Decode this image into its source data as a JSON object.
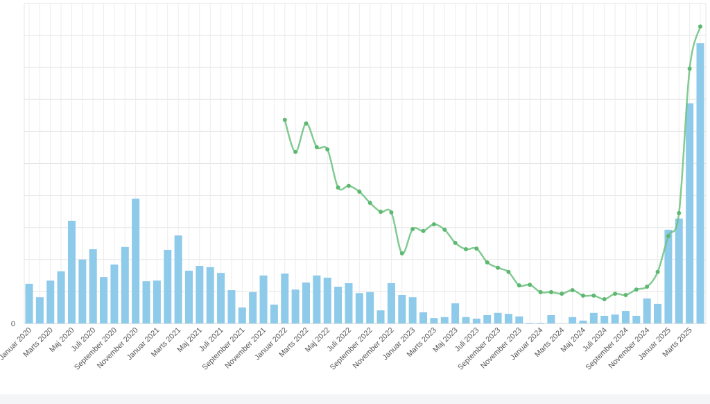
{
  "chart_data": {
    "type": "bar+line",
    "categories": [
      "Januar 2020",
      null,
      "Marts 2020",
      null,
      "Maj 2020",
      null,
      "Juli 2020",
      null,
      "September 2020",
      null,
      "November 2020",
      null,
      "Januar 2021",
      null,
      "Marts 2021",
      null,
      "Maj 2021",
      null,
      "Juli 2021",
      null,
      "September 2021",
      null,
      "November 2021",
      null,
      "Januar 2022",
      null,
      "Marts 2022",
      null,
      "Maj 2022",
      null,
      "Juli 2022",
      null,
      "September 2022",
      null,
      "November 2022",
      null,
      "Januar 2023",
      null,
      "Marts 2023",
      null,
      "Maj 2023",
      null,
      "Juli 2023",
      null,
      "September 2023",
      null,
      "November 2023",
      null,
      "Januar 2024",
      null,
      "Marts 2024",
      null,
      "Maj 2024",
      null,
      "Juli 2024",
      null,
      "September 2024",
      null,
      "November 2024",
      null,
      "Januar 2025",
      null,
      "Marts 2025",
      null
    ],
    "series": [
      {
        "type": "bar",
        "color": "#8ecae9",
        "values": [
          12.4,
          8.2,
          13.4,
          16.3,
          32.1,
          20,
          23.2,
          14.5,
          18.4,
          23.9,
          39,
          13.2,
          13.4,
          23,
          27.5,
          16.5,
          18,
          17.6,
          15.8,
          10.4,
          5,
          9.8,
          15,
          5.9,
          15.6,
          10.6,
          12.8,
          15,
          14.3,
          11.5,
          12.6,
          9.5,
          9.8,
          4.1,
          12.6,
          8.9,
          8.2,
          3.5,
          1.7,
          2,
          6.3,
          2,
          1.5,
          2.6,
          3.3,
          3,
          2.2,
          0.2,
          0.2,
          2.6,
          0,
          2,
          0.9,
          3.3,
          2.4,
          2.8,
          3.9,
          2.4,
          7.8,
          6.1,
          29.3,
          32.8,
          68.8,
          87.6
        ]
      },
      {
        "type": "line",
        "color": "#6cc17f",
        "values": [
          null,
          null,
          null,
          null,
          null,
          null,
          null,
          null,
          null,
          null,
          null,
          null,
          null,
          null,
          null,
          null,
          null,
          null,
          null,
          null,
          null,
          null,
          null,
          null,
          63.6,
          53.6,
          62.5,
          55.1,
          54.4,
          42.5,
          43,
          41.2,
          37.7,
          34.9,
          34.7,
          21.9,
          29.5,
          28.9,
          31,
          29.3,
          25.2,
          23.2,
          23.4,
          19.1,
          17.4,
          16.1,
          11.9,
          12.1,
          9.8,
          9.8,
          9.3,
          10.4,
          8.7,
          8.7,
          7.6,
          9.3,
          8.9,
          10.6,
          11.5,
          16.1,
          27.3,
          34.5,
          79.6,
          92.8
        ]
      }
    ],
    "ylim": [
      0,
      100
    ],
    "yticks": [
      0
    ],
    "grid": true,
    "grid_lines": [
      10,
      20,
      30,
      40,
      50,
      60,
      70,
      80,
      90,
      100
    ]
  }
}
